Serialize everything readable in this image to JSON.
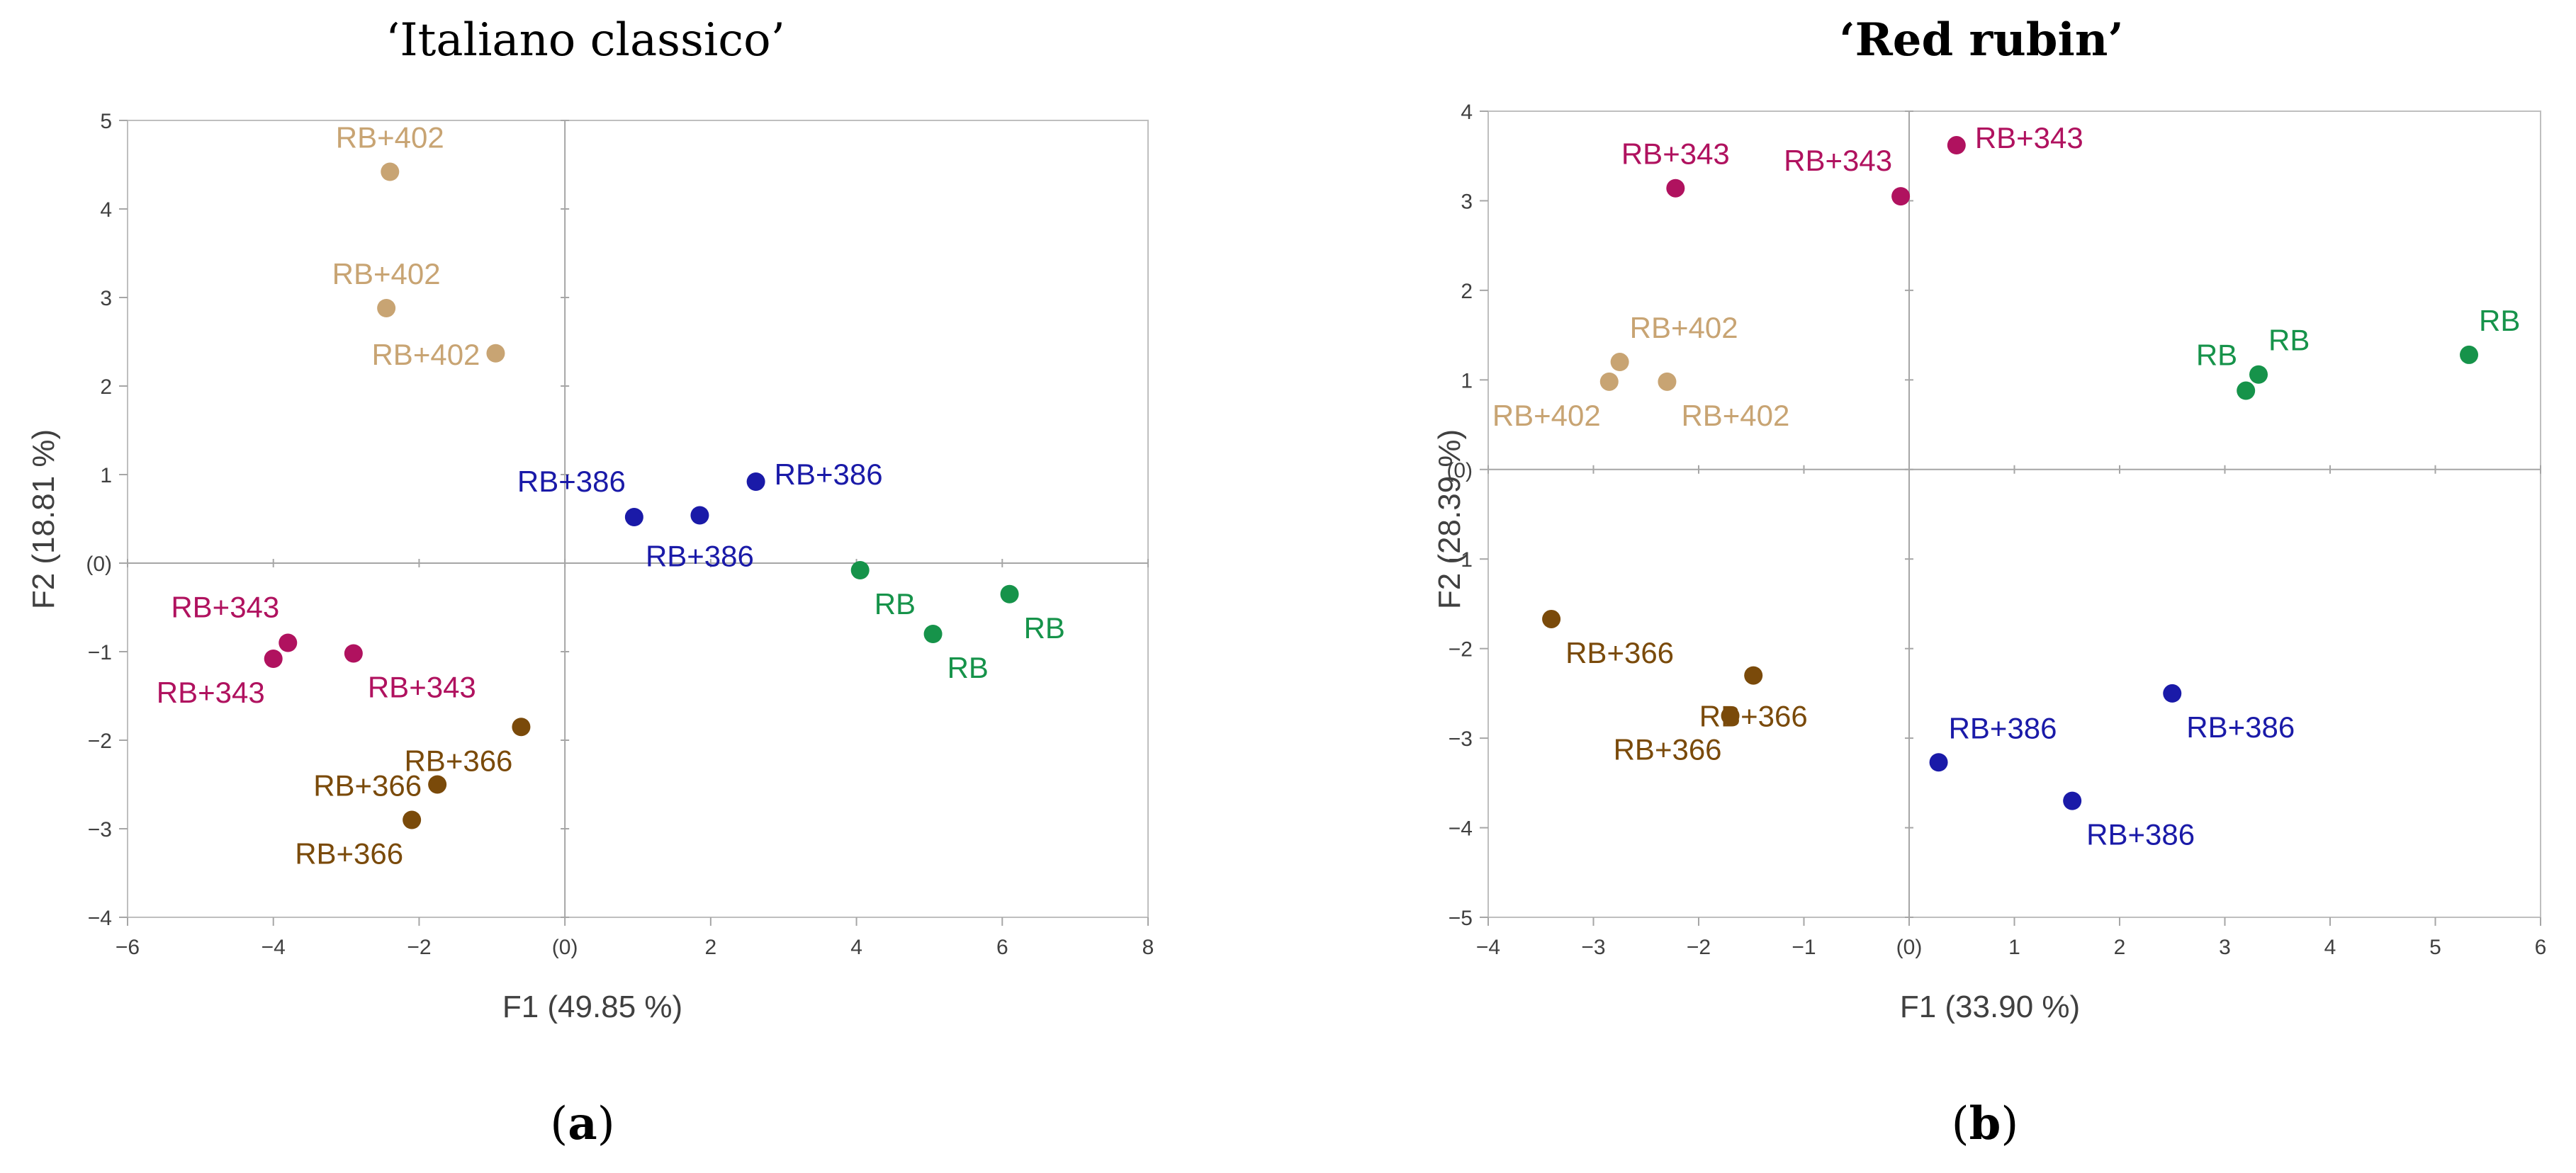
{
  "figure": {
    "panels": [
      {
        "id": "a",
        "title": "‘Italiano classico’",
        "title_weight": "normal",
        "caption_open": "(",
        "caption_letter": "a",
        "caption_close": ")"
      },
      {
        "id": "b",
        "title": "‘Red rubin’",
        "title_weight": "bold",
        "caption_open": "(",
        "caption_letter": "b",
        "caption_close": ")"
      }
    ]
  },
  "colors": {
    "RB": "#16934a",
    "RB+343": "#b0125f",
    "RB+366": "#7a4a0a",
    "RB+386": "#1a1aa8",
    "RB+402": "#c8a473",
    "axis": "#a6a6a6",
    "text": "#404040"
  },
  "chart_data": [
    {
      "type": "scatter",
      "title": "‘Italiano classico’",
      "xlabel": "F1 (49.85 %)",
      "ylabel": "F2 (18.81 %)",
      "xlim": [
        -6,
        8
      ],
      "ylim": [
        -4,
        5
      ],
      "xticks": [
        -6,
        -4,
        -2,
        0,
        2,
        4,
        6,
        8
      ],
      "yticks": [
        -4,
        -3,
        -2,
        -1,
        0,
        1,
        2,
        3,
        4,
        5
      ],
      "zero_label": "(0)",
      "grid": false,
      "series": [
        {
          "name": "RB",
          "points": [
            {
              "x": 4.05,
              "y": -0.08,
              "label": "RB",
              "label_pos": "below-right"
            },
            {
              "x": 6.1,
              "y": -0.35,
              "label": "RB",
              "label_pos": "below-right"
            },
            {
              "x": 5.05,
              "y": -0.8,
              "label": "RB",
              "label_pos": "below-right"
            }
          ]
        },
        {
          "name": "RB+343",
          "points": [
            {
              "x": -3.8,
              "y": -0.9,
              "label": "RB+343",
              "label_pos": "above-left"
            },
            {
              "x": -4.0,
              "y": -1.08,
              "label": "RB+343",
              "label_pos": "below-left"
            },
            {
              "x": -2.9,
              "y": -1.02,
              "label": "RB+343",
              "label_pos": "below-right"
            }
          ]
        },
        {
          "name": "RB+366",
          "points": [
            {
              "x": -0.6,
              "y": -1.85,
              "label": "RB+366",
              "label_pos": "below-left"
            },
            {
              "x": -1.75,
              "y": -2.5,
              "label": "RB+366",
              "label_pos": "left"
            },
            {
              "x": -2.1,
              "y": -2.9,
              "label": "RB+366",
              "label_pos": "below-left"
            }
          ]
        },
        {
          "name": "RB+386",
          "points": [
            {
              "x": 0.95,
              "y": 0.52,
              "label": "RB+386",
              "label_pos": "above-left"
            },
            {
              "x": 1.85,
              "y": 0.54,
              "label": "RB+386",
              "label_pos": "below"
            },
            {
              "x": 2.62,
              "y": 0.92,
              "label": "RB+386",
              "label_pos": "right"
            }
          ]
        },
        {
          "name": "RB+402",
          "points": [
            {
              "x": -2.4,
              "y": 4.42,
              "label": "RB+402",
              "label_pos": "above"
            },
            {
              "x": -2.45,
              "y": 2.88,
              "label": "RB+402",
              "label_pos": "above"
            },
            {
              "x": -0.95,
              "y": 2.37,
              "label": "RB+402",
              "label_pos": "left"
            }
          ]
        }
      ]
    },
    {
      "type": "scatter",
      "title": "‘Red rubin’",
      "xlabel": "F1 (33.90 %)",
      "ylabel": "F2 (28.39 %)",
      "xlim": [
        -4,
        6
      ],
      "ylim": [
        -5,
        4
      ],
      "xticks": [
        -4,
        -3,
        -2,
        -1,
        0,
        1,
        2,
        3,
        4,
        5,
        6
      ],
      "yticks": [
        -5,
        -4,
        -3,
        -2,
        -1,
        0,
        1,
        2,
        3,
        4
      ],
      "zero_label": "(0)",
      "grid": false,
      "series": [
        {
          "name": "RB",
          "points": [
            {
              "x": 3.2,
              "y": 0.88,
              "label": "RB",
              "label_pos": "above-left"
            },
            {
              "x": 3.32,
              "y": 1.06,
              "label": "RB",
              "label_pos": "above-right"
            },
            {
              "x": 5.32,
              "y": 1.28,
              "label": "RB",
              "label_pos": "above-right"
            }
          ]
        },
        {
          "name": "RB+343",
          "points": [
            {
              "x": -2.22,
              "y": 3.14,
              "label": "RB+343",
              "label_pos": "above"
            },
            {
              "x": -0.08,
              "y": 3.05,
              "label": "RB+343",
              "label_pos": "above-left"
            },
            {
              "x": 0.45,
              "y": 3.62,
              "label": "RB+343",
              "label_pos": "right"
            }
          ]
        },
        {
          "name": "RB+366",
          "points": [
            {
              "x": -3.4,
              "y": -1.67,
              "label": "RB+366",
              "label_pos": "below-right"
            },
            {
              "x": -1.48,
              "y": -2.3,
              "label": "RB+366",
              "label_pos": "below"
            },
            {
              "x": -1.7,
              "y": -2.75,
              "label": "RB+366",
              "label_pos": "below-left"
            }
          ]
        },
        {
          "name": "RB+386",
          "points": [
            {
              "x": 0.28,
              "y": -3.27,
              "label": "RB+386",
              "label_pos": "above-right"
            },
            {
              "x": 1.55,
              "y": -3.7,
              "label": "RB+386",
              "label_pos": "below-right"
            },
            {
              "x": 2.5,
              "y": -2.5,
              "label": "RB+386",
              "label_pos": "below-right"
            }
          ]
        },
        {
          "name": "RB+402",
          "points": [
            {
              "x": -2.75,
              "y": 1.2,
              "label": "RB+402",
              "label_pos": "above-right"
            },
            {
              "x": -2.85,
              "y": 0.98,
              "label": "RB+402",
              "label_pos": "below-left"
            },
            {
              "x": -2.3,
              "y": 0.98,
              "label": "RB+402",
              "label_pos": "below-right"
            }
          ]
        }
      ]
    }
  ]
}
